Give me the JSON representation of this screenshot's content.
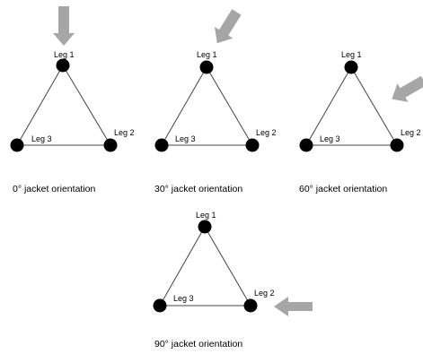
{
  "colors": {
    "arrow": "#a6a6a6",
    "node": "#000000",
    "edge": "#444444"
  },
  "panels": [
    {
      "caption": "0° jacket orientation",
      "legs": [
        "Leg 1",
        "Leg 2",
        "Leg 3"
      ]
    },
    {
      "caption": "30° jacket orientation",
      "legs": [
        "Leg 1",
        "Leg 2",
        "Leg 3"
      ]
    },
    {
      "caption": "60° jacket orientation",
      "legs": [
        "Leg 1",
        "Leg 2",
        "Leg 3"
      ]
    },
    {
      "caption": "90° jacket orientation",
      "legs": [
        "Leg 1",
        "Leg 2",
        "Leg 3"
      ]
    }
  ]
}
